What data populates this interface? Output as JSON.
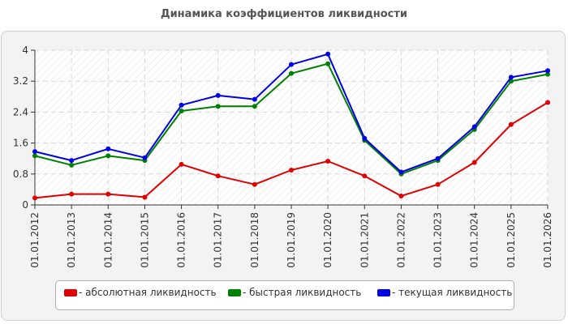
{
  "chart_data": {
    "type": "line",
    "title": "Динамика коэффициентов ликвидности",
    "xlabel": "",
    "ylabel": "",
    "categories": [
      "01.01.2012",
      "01.01.2013",
      "01.01.2014",
      "01.01.2015",
      "01.01.2016",
      "01.01.2017",
      "01.01.2018",
      "01.01.2019",
      "01.01.2020",
      "01.01.2021",
      "01.01.2022",
      "01.01.2023",
      "01.01.2024",
      "01.01.2025",
      "01.01.2026"
    ],
    "ylim": [
      0,
      4
    ],
    "yticks": [
      "0",
      "0.8",
      "1.6",
      "2.4",
      "3.2",
      "4"
    ],
    "ytick_values": [
      0,
      0.8,
      1.6,
      2.4,
      3.2,
      4
    ],
    "grid": true,
    "legend_position": "bottom",
    "series": [
      {
        "name": "- абсолютная ликвидность",
        "color": "#e00000",
        "values": [
          0.18,
          0.28,
          0.28,
          0.2,
          1.05,
          0.75,
          0.53,
          0.9,
          1.13,
          0.75,
          0.23,
          0.53,
          1.1,
          2.08,
          2.65
        ]
      },
      {
        "name": "- быстрая ликвидность",
        "color": "#008000",
        "values": [
          1.27,
          1.03,
          1.27,
          1.15,
          2.43,
          2.55,
          2.55,
          3.4,
          3.65,
          1.67,
          0.8,
          1.15,
          1.95,
          3.2,
          3.38
        ]
      },
      {
        "name": "- текущая ликвидность",
        "color": "#0000e8",
        "values": [
          1.38,
          1.15,
          1.45,
          1.22,
          2.58,
          2.83,
          2.73,
          3.63,
          3.9,
          1.72,
          0.85,
          1.2,
          2.02,
          3.3,
          3.47
        ]
      }
    ]
  }
}
